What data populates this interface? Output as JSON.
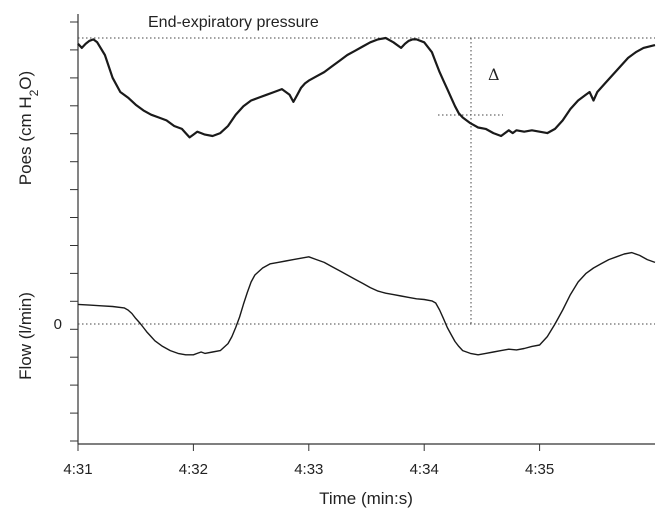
{
  "chart_data": {
    "type": "line",
    "xlabel": "Time (min:s)",
    "x_ticks": [
      "4:31",
      "4:32",
      "4:33",
      "4:34",
      "4:35"
    ],
    "x_tick_values": [
      0,
      60,
      120,
      180,
      240
    ],
    "xlim": [
      0,
      300
    ],
    "panels": [
      {
        "id": "poes",
        "ylabel": "Poes (cm H",
        "ylabel_sub": "2",
        "ylabel_end": "O)",
        "annotation": "End-expiratory pressure",
        "delta_label": "Δ",
        "series": [
          {
            "x": [
              0,
              2,
              4,
              6,
              8,
              10,
              14,
              18,
              22,
              26,
              30,
              34,
              38,
              42,
              46,
              50,
              54,
              56,
              58,
              60,
              62,
              64,
              66,
              70,
              74,
              78,
              82,
              86,
              90,
              94,
              98,
              102,
              106,
              110,
              112,
              114,
              116,
              118,
              120,
              124,
              128,
              132,
              136,
              140,
              144,
              148,
              152,
              156,
              160,
              164,
              168,
              170,
              172,
              174,
              176,
              180,
              184,
              186,
              188,
              190,
              192,
              194,
              196,
              198,
              200,
              204,
              208,
              212,
              216,
              220,
              224,
              226,
              228,
              232,
              236,
              240,
              244,
              248,
              252,
              256,
              260,
              264,
              266,
              268,
              270,
              274,
              278,
              282,
              286,
              290,
              294,
              300
            ],
            "y": [
              0.96,
              0.93,
              0.96,
              0.98,
              0.99,
              0.97,
              0.88,
              0.72,
              0.62,
              0.58,
              0.53,
              0.49,
              0.46,
              0.44,
              0.42,
              0.38,
              0.36,
              0.33,
              0.3,
              0.32,
              0.34,
              0.33,
              0.32,
              0.31,
              0.33,
              0.38,
              0.46,
              0.52,
              0.56,
              0.58,
              0.6,
              0.62,
              0.64,
              0.6,
              0.55,
              0.6,
              0.65,
              0.68,
              0.7,
              0.73,
              0.76,
              0.8,
              0.84,
              0.88,
              0.91,
              0.94,
              0.97,
              0.99,
              1.0,
              0.97,
              0.93,
              0.96,
              0.98,
              0.99,
              0.99,
              0.97,
              0.9,
              0.83,
              0.76,
              0.7,
              0.64,
              0.58,
              0.52,
              0.47,
              0.44,
              0.4,
              0.37,
              0.36,
              0.33,
              0.31,
              0.35,
              0.33,
              0.35,
              0.34,
              0.35,
              0.34,
              0.33,
              0.36,
              0.42,
              0.5,
              0.56,
              0.6,
              0.62,
              0.56,
              0.62,
              0.68,
              0.74,
              0.8,
              0.86,
              0.9,
              0.93,
              0.95
            ]
          }
        ]
      },
      {
        "id": "flow",
        "ylabel": "Flow (l/min)",
        "zero_label": "0",
        "series": [
          {
            "x": [
              0,
              6,
              12,
              18,
              24,
              26,
              28,
              30,
              32,
              34,
              36,
              38,
              40,
              44,
              48,
              52,
              56,
              60,
              62,
              64,
              66,
              70,
              74,
              78,
              80,
              82,
              84,
              86,
              88,
              90,
              92,
              96,
              100,
              104,
              108,
              112,
              116,
              120,
              124,
              128,
              132,
              136,
              140,
              144,
              148,
              152,
              156,
              160,
              164,
              168,
              172,
              176,
              180,
              184,
              186,
              188,
              190,
              192,
              194,
              196,
              198,
              200,
              204,
              208,
              212,
              216,
              220,
              224,
              228,
              232,
              236,
              240,
              244,
              248,
              252,
              256,
              260,
              264,
              268,
              272,
              276,
              280,
              284,
              288,
              292,
              296,
              300
            ],
            "y": [
              0.28,
              0.27,
              0.26,
              0.25,
              0.23,
              0.2,
              0.15,
              0.08,
              0.02,
              -0.05,
              -0.12,
              -0.18,
              -0.24,
              -0.32,
              -0.38,
              -0.42,
              -0.44,
              -0.44,
              -0.42,
              -0.4,
              -0.42,
              -0.4,
              -0.38,
              -0.28,
              -0.18,
              -0.05,
              0.1,
              0.28,
              0.45,
              0.6,
              0.7,
              0.8,
              0.86,
              0.88,
              0.9,
              0.92,
              0.94,
              0.96,
              0.92,
              0.88,
              0.82,
              0.76,
              0.7,
              0.64,
              0.58,
              0.52,
              0.47,
              0.44,
              0.42,
              0.4,
              0.38,
              0.36,
              0.35,
              0.33,
              0.3,
              0.2,
              0.08,
              -0.05,
              -0.15,
              -0.25,
              -0.32,
              -0.38,
              -0.42,
              -0.44,
              -0.42,
              -0.4,
              -0.38,
              -0.36,
              -0.37,
              -0.35,
              -0.32,
              -0.3,
              -0.18,
              0.0,
              0.2,
              0.42,
              0.6,
              0.72,
              0.8,
              0.86,
              0.92,
              0.96,
              1.0,
              1.02,
              0.98,
              0.92,
              0.88
            ]
          }
        ]
      }
    ],
    "grid": false
  },
  "colors": {
    "trace": "#1a1a1a",
    "axis": "#333333",
    "dotted": "#444444",
    "background": "#ffffff"
  }
}
